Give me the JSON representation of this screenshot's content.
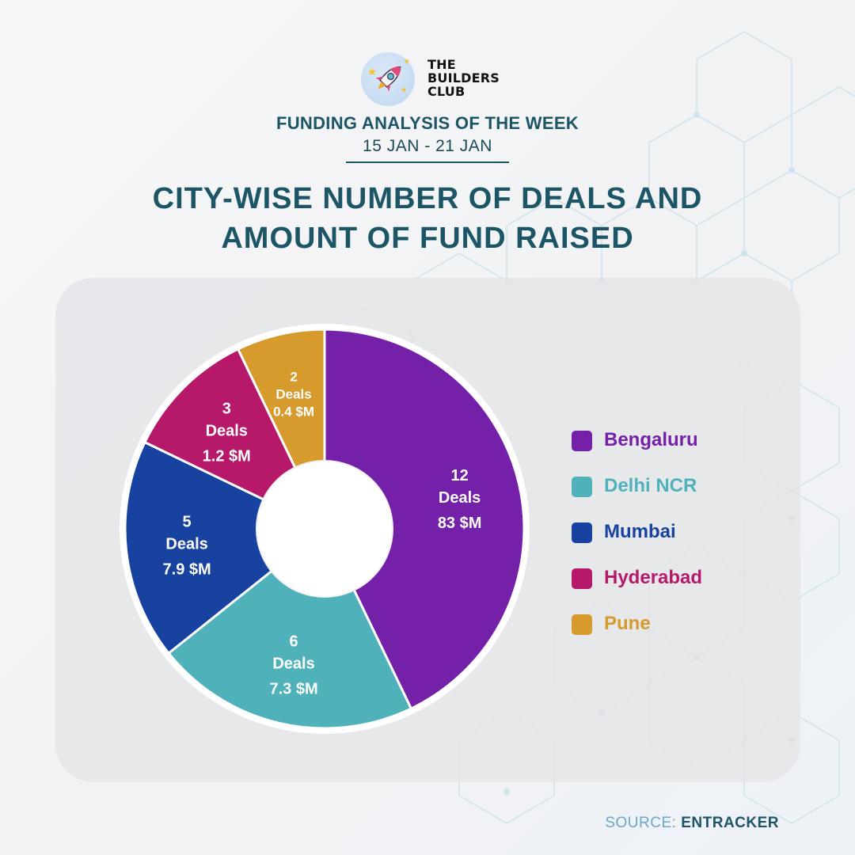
{
  "brand": {
    "name_lines": [
      "THE",
      "BUILDERS",
      "CLUB"
    ],
    "logo_icon": "rocket-icon"
  },
  "header": {
    "title": "FUNDING ANALYSIS OF THE WEEK",
    "date_range": "15 JAN - 21 JAN"
  },
  "main_title_lines": [
    "CITY-WISE NUMBER OF DEALS AND",
    "AMOUNT OF FUND RAISED"
  ],
  "chart_data": {
    "type": "pie",
    "style": "donut",
    "categories": [
      "Bengaluru",
      "Delhi NCR",
      "Mumbai",
      "Hyderabad",
      "Pune"
    ],
    "deals": [
      12,
      6,
      5,
      3,
      2
    ],
    "deals_labels": [
      "12",
      "6",
      "5",
      "3",
      "2"
    ],
    "deals_unit": "Deals",
    "amount_labels": [
      "83 $M",
      "7.3 $M",
      "7.9 $M",
      "1.2 $M",
      "0.4 $M"
    ],
    "colors": [
      "#7520a8",
      "#4fb2ba",
      "#1842a0",
      "#b7196a",
      "#d69a2d"
    ],
    "legend_position": "right"
  },
  "source": {
    "label": "SOURCE:",
    "value": "ENTRACKER"
  }
}
